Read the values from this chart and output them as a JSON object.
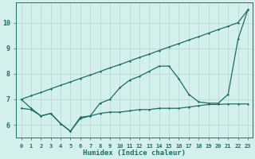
{
  "xlabel": "Humidex (Indice chaleur)",
  "bg_color": "#d4f0ec",
  "grid_color": "#b8dbd6",
  "line_color": "#1a6e62",
  "x": [
    0,
    1,
    2,
    3,
    4,
    5,
    6,
    7,
    8,
    9,
    10,
    11,
    12,
    13,
    14,
    15,
    16,
    17,
    18,
    19,
    20,
    21,
    22,
    23
  ],
  "line1_y": [
    7.0,
    7.14,
    7.27,
    7.41,
    7.55,
    7.68,
    7.82,
    7.95,
    8.09,
    8.23,
    8.36,
    8.5,
    8.64,
    8.77,
    8.91,
    9.05,
    9.18,
    9.32,
    9.45,
    9.59,
    9.73,
    9.86,
    10.0,
    10.5
  ],
  "line2_y": [
    7.0,
    6.65,
    6.35,
    6.45,
    6.05,
    5.75,
    6.3,
    6.35,
    6.85,
    7.0,
    7.45,
    7.75,
    7.9,
    8.1,
    8.3,
    8.3,
    7.8,
    7.2,
    6.9,
    6.85,
    6.85,
    7.2,
    9.35,
    10.5
  ],
  "line3_y": [
    6.65,
    6.6,
    6.35,
    6.45,
    6.05,
    5.75,
    6.25,
    6.35,
    6.45,
    6.5,
    6.5,
    6.55,
    6.6,
    6.6,
    6.65,
    6.65,
    6.65,
    6.7,
    6.75,
    6.8,
    6.8,
    6.82,
    6.82,
    6.82
  ],
  "ylim": [
    5.5,
    10.8
  ],
  "xlim": [
    -0.5,
    23.5
  ],
  "yticks": [
    6,
    7,
    8,
    9,
    10
  ],
  "xticks": [
    0,
    1,
    2,
    3,
    4,
    5,
    6,
    7,
    8,
    9,
    10,
    11,
    12,
    13,
    14,
    15,
    16,
    17,
    18,
    19,
    20,
    21,
    22,
    23
  ]
}
